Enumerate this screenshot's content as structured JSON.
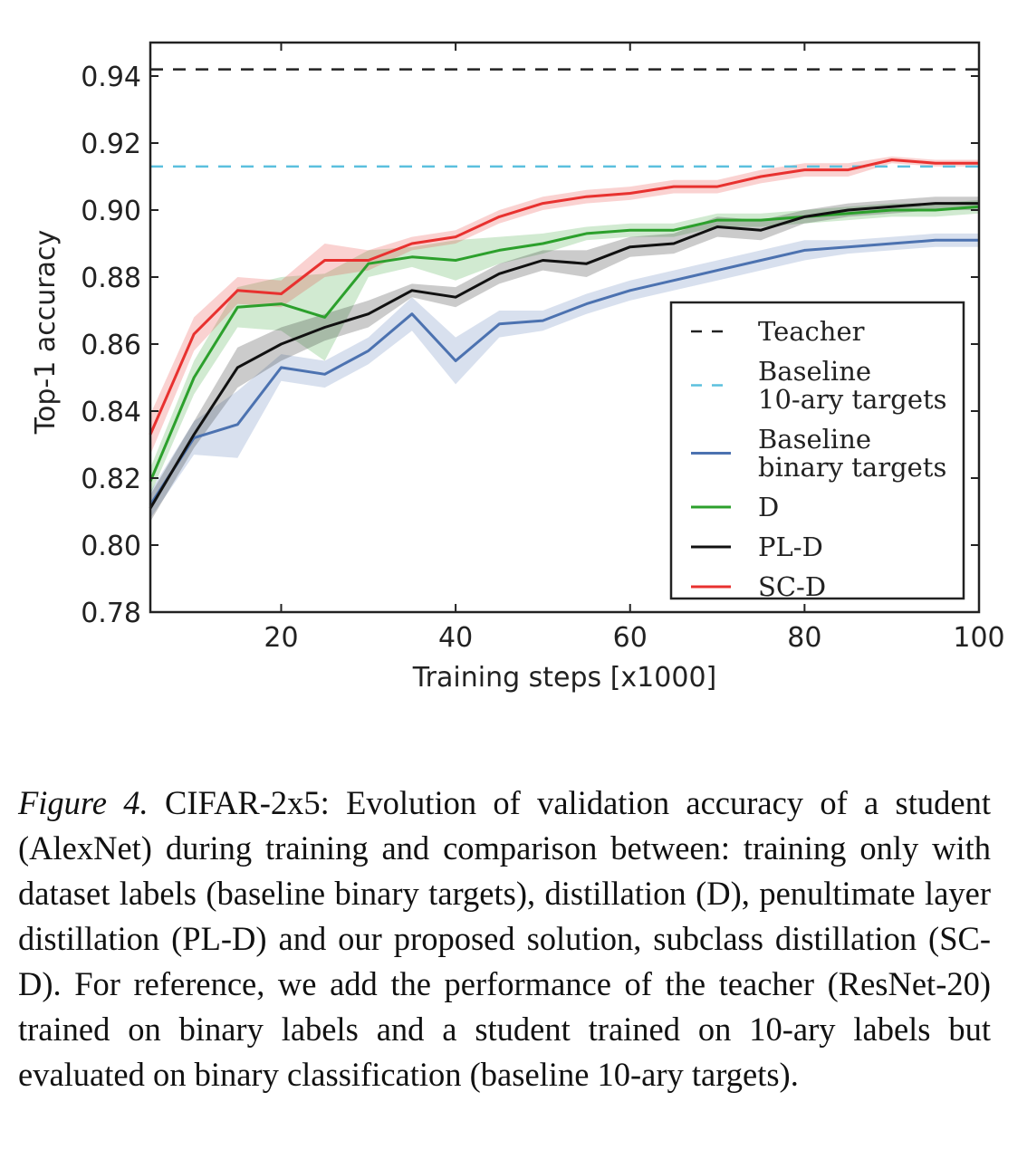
{
  "chart_data": {
    "type": "line",
    "xlabel": "Training steps [x1000]",
    "ylabel": "Top-1 accuracy",
    "xlim": [
      5,
      100
    ],
    "ylim": [
      0.78,
      0.95
    ],
    "xticks": [
      20,
      40,
      60,
      80,
      100
    ],
    "yticks": [
      0.78,
      0.8,
      0.82,
      0.84,
      0.86,
      0.88,
      0.9,
      0.92,
      0.94
    ],
    "legend_position": "lower-right",
    "x": [
      5,
      10,
      15,
      20,
      25,
      30,
      35,
      40,
      45,
      50,
      55,
      60,
      65,
      70,
      75,
      80,
      85,
      90,
      95,
      100
    ],
    "reference_lines": [
      {
        "name": "Teacher",
        "value": 0.942,
        "color": "#222222",
        "style": "dashed"
      },
      {
        "name": "Baseline\n10-ary targets",
        "value": 0.913,
        "color": "#5bc0de",
        "style": "dashed"
      }
    ],
    "series": [
      {
        "name": "Baseline\nbinary targets",
        "color": "#4c72b0",
        "values": [
          0.812,
          0.832,
          0.836,
          0.853,
          0.851,
          0.858,
          0.869,
          0.855,
          0.866,
          0.867,
          0.872,
          0.876,
          0.879,
          0.882,
          0.885,
          0.888,
          0.889,
          0.89,
          0.891,
          0.891
        ],
        "spread": [
          0.004,
          0.005,
          0.01,
          0.004,
          0.004,
          0.004,
          0.005,
          0.007,
          0.004,
          0.003,
          0.003,
          0.003,
          0.003,
          0.003,
          0.003,
          0.003,
          0.002,
          0.002,
          0.002,
          0.002
        ]
      },
      {
        "name": "D",
        "color": "#2ca02c",
        "values": [
          0.819,
          0.85,
          0.871,
          0.872,
          0.868,
          0.884,
          0.886,
          0.885,
          0.888,
          0.89,
          0.893,
          0.894,
          0.894,
          0.897,
          0.897,
          0.898,
          0.899,
          0.9,
          0.9,
          0.901
        ],
        "spread": [
          0.004,
          0.005,
          0.006,
          0.008,
          0.013,
          0.004,
          0.003,
          0.006,
          0.004,
          0.003,
          0.002,
          0.002,
          0.002,
          0.002,
          0.002,
          0.002,
          0.002,
          0.002,
          0.002,
          0.002
        ]
      },
      {
        "name": "PL-D",
        "color": "#111111",
        "values": [
          0.811,
          0.833,
          0.853,
          0.86,
          0.865,
          0.869,
          0.876,
          0.874,
          0.881,
          0.885,
          0.884,
          0.889,
          0.89,
          0.895,
          0.894,
          0.898,
          0.9,
          0.901,
          0.902,
          0.902
        ],
        "spread": [
          0.004,
          0.004,
          0.006,
          0.005,
          0.004,
          0.004,
          0.002,
          0.003,
          0.003,
          0.003,
          0.004,
          0.003,
          0.003,
          0.003,
          0.003,
          0.002,
          0.002,
          0.002,
          0.002,
          0.002
        ]
      },
      {
        "name": "SC-D",
        "color": "#e8312f",
        "values": [
          0.833,
          0.863,
          0.876,
          0.875,
          0.885,
          0.885,
          0.89,
          0.892,
          0.898,
          0.902,
          0.904,
          0.905,
          0.907,
          0.907,
          0.91,
          0.912,
          0.912,
          0.915,
          0.914,
          0.914
        ],
        "spread": [
          0.006,
          0.005,
          0.004,
          0.004,
          0.005,
          0.003,
          0.002,
          0.002,
          0.002,
          0.002,
          0.002,
          0.002,
          0.002,
          0.002,
          0.002,
          0.002,
          0.002,
          0.001,
          0.001,
          0.001
        ]
      }
    ]
  },
  "caption": {
    "label": "Figure 4.",
    "text": " CIFAR-2x5: Evolution of validation accuracy of a student (AlexNet) during training and comparison between: training only with dataset labels (baseline binary targets), distillation (D), penultimate layer distillation (PL-D) and our proposed solution, subclass distillation (SC-D). For reference, we add the performance of the teacher (ResNet-20) trained on binary labels and a student trained on 10-ary labels but evaluated on binary classification (baseline 10-ary targets)."
  }
}
